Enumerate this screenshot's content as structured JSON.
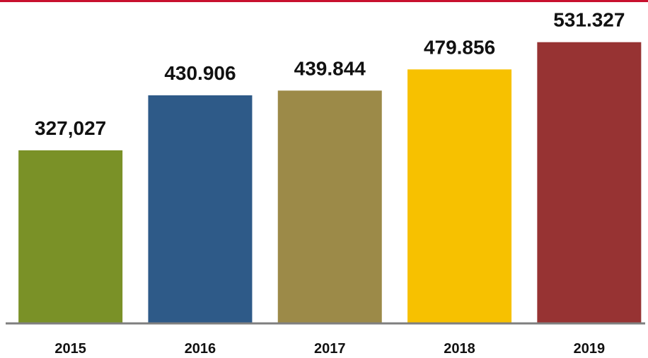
{
  "chart_data": {
    "type": "bar",
    "categories": [
      "2015",
      "2016",
      "2017",
      "2018",
      "2019"
    ],
    "values": [
      327027,
      430906,
      439844,
      479856,
      531327
    ],
    "value_labels": [
      "327,027",
      "430.906",
      "439.844",
      "479.856",
      "531.327"
    ],
    "bar_colors": [
      "#7a9127",
      "#2e5a88",
      "#9c8a48",
      "#f7c100",
      "#973333"
    ],
    "ylim": [
      0,
      611000
    ],
    "grid": false,
    "legend": "none"
  },
  "colors": {
    "top_rule": "#c8102e",
    "axis": "#7f7f7f"
  }
}
